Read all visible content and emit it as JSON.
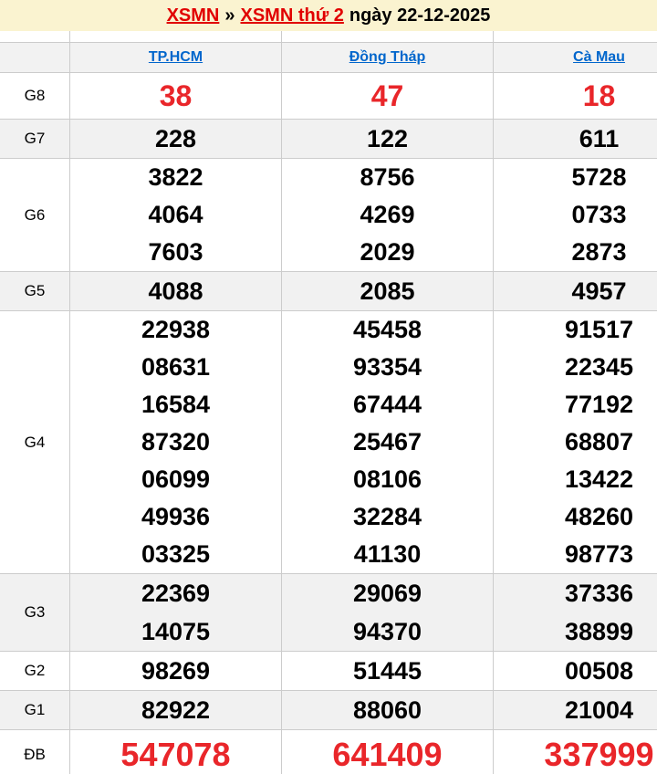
{
  "banner": {
    "link1": "XSMN",
    "separator": "»",
    "link2": "XSMN thứ 2",
    "suffix": "ngày 22-12-2025"
  },
  "table": {
    "columns": [
      "TP.HCM",
      "Đồng Tháp",
      "Cà Mau"
    ],
    "groups": [
      {
        "label": "G8",
        "cols": [
          [
            "38"
          ],
          [
            "47"
          ],
          [
            "18"
          ]
        ]
      },
      {
        "label": "G7",
        "cols": [
          [
            "228"
          ],
          [
            "122"
          ],
          [
            "611"
          ]
        ]
      },
      {
        "label": "G6",
        "cols": [
          [
            "3822",
            "4064",
            "7603"
          ],
          [
            "8756",
            "4269",
            "2029"
          ],
          [
            "5728",
            "0733",
            "2873"
          ]
        ]
      },
      {
        "label": "G5",
        "cols": [
          [
            "4088"
          ],
          [
            "2085"
          ],
          [
            "4957"
          ]
        ]
      },
      {
        "label": "G4",
        "cols": [
          [
            "22938",
            "08631",
            "16584",
            "87320",
            "06099",
            "49936",
            "03325"
          ],
          [
            "45458",
            "93354",
            "67444",
            "25467",
            "08106",
            "32284",
            "41130"
          ],
          [
            "91517",
            "22345",
            "77192",
            "68807",
            "13422",
            "48260",
            "98773"
          ]
        ]
      },
      {
        "label": "G3",
        "cols": [
          [
            "22369",
            "14075"
          ],
          [
            "29069",
            "94370"
          ],
          [
            "37336",
            "38899"
          ]
        ]
      },
      {
        "label": "G2",
        "cols": [
          [
            "98269"
          ],
          [
            "51445"
          ],
          [
            "00508"
          ]
        ]
      },
      {
        "label": "G1",
        "cols": [
          [
            "82922"
          ],
          [
            "88060"
          ],
          [
            "21004"
          ]
        ]
      },
      {
        "label": "ĐB",
        "cols": [
          [
            "547078"
          ],
          [
            "641409"
          ],
          [
            "337999"
          ]
        ]
      }
    ]
  },
  "colors": {
    "accent_red": "#e9262a",
    "link_blue": "#0066cc",
    "banner_bg": "#faf3d0",
    "row_alt_bg": "#f1f1f1",
    "border": "#cccccc"
  }
}
